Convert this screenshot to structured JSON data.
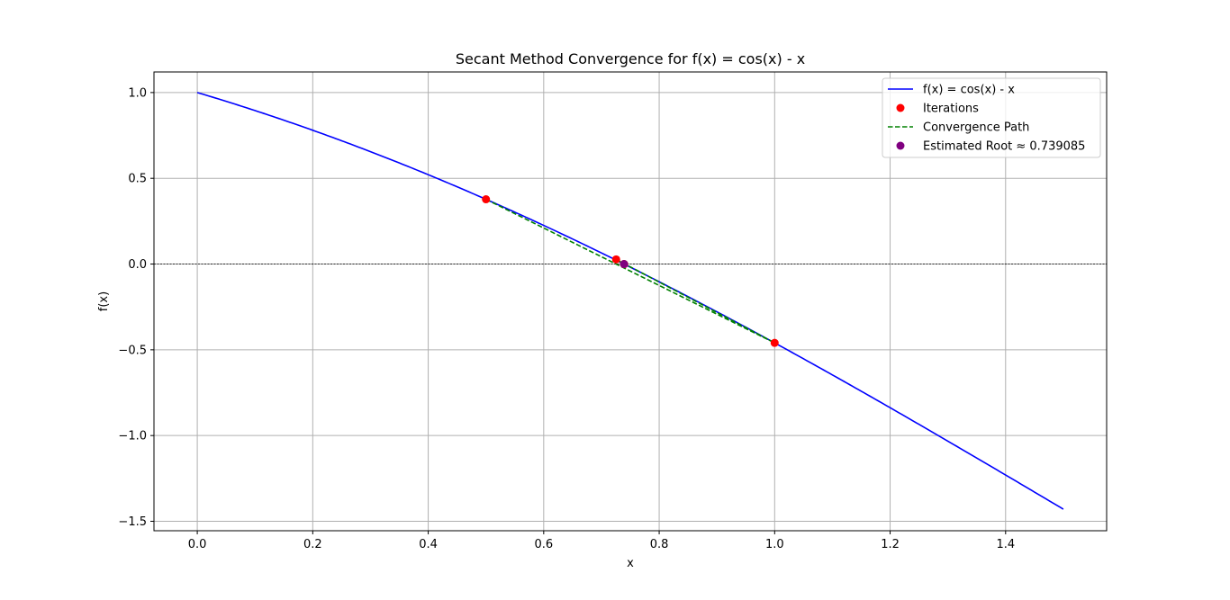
{
  "chart_data": {
    "type": "line",
    "title": "Secant Method Convergence for f(x) = cos(x) - x",
    "xlabel": "x",
    "ylabel": "f(x)",
    "xlim": [
      -0.075,
      1.575
    ],
    "ylim": [
      -1.555,
      1.12
    ],
    "x_ticks": [
      0.0,
      0.2,
      0.4,
      0.6,
      0.8,
      1.0,
      1.2,
      1.4
    ],
    "x_tick_labels": [
      "0.0",
      "0.2",
      "0.4",
      "0.6",
      "0.8",
      "1.0",
      "1.2",
      "1.4"
    ],
    "y_ticks": [
      1.0,
      0.5,
      0.0,
      -0.5,
      -1.0,
      -1.5
    ],
    "y_tick_labels": [
      "1.0",
      "0.5",
      "0.0",
      "−0.5",
      "−1.0",
      "−1.5"
    ],
    "grid": true,
    "zero_line": {
      "y": 0,
      "color": "#000000",
      "style": "dashed"
    },
    "legend_position": "top-right",
    "series": [
      {
        "name": "f(x) = cos(x) - x",
        "kind": "line",
        "color": "#0000ff",
        "function": "cos(x) - x",
        "x_range": [
          0.0,
          1.5
        ]
      },
      {
        "name": "Iterations",
        "kind": "scatter",
        "color": "#ff0000",
        "points": [
          {
            "x": 0.5,
            "y": 0.37758
          },
          {
            "x": 1.0,
            "y": -0.4597
          },
          {
            "x": 0.72548,
            "y": 0.0271
          },
          {
            "x": 0.73946,
            "y": -0.00063
          },
          {
            "x": 0.73908,
            "y": 0.0
          }
        ]
      },
      {
        "name": "Convergence Path",
        "kind": "dashed-line",
        "color": "#008000",
        "points": [
          {
            "x": 0.5,
            "y": 0.37758
          },
          {
            "x": 1.0,
            "y": -0.4597
          },
          {
            "x": 0.72548,
            "y": 0.0271
          },
          {
            "x": 0.73946,
            "y": -0.00063
          },
          {
            "x": 0.73908,
            "y": 0.0
          }
        ]
      },
      {
        "name": "Estimated Root ≈ 0.739085",
        "kind": "scatter",
        "color": "#800080",
        "points": [
          {
            "x": 0.739085,
            "y": 0.0
          }
        ]
      }
    ]
  }
}
